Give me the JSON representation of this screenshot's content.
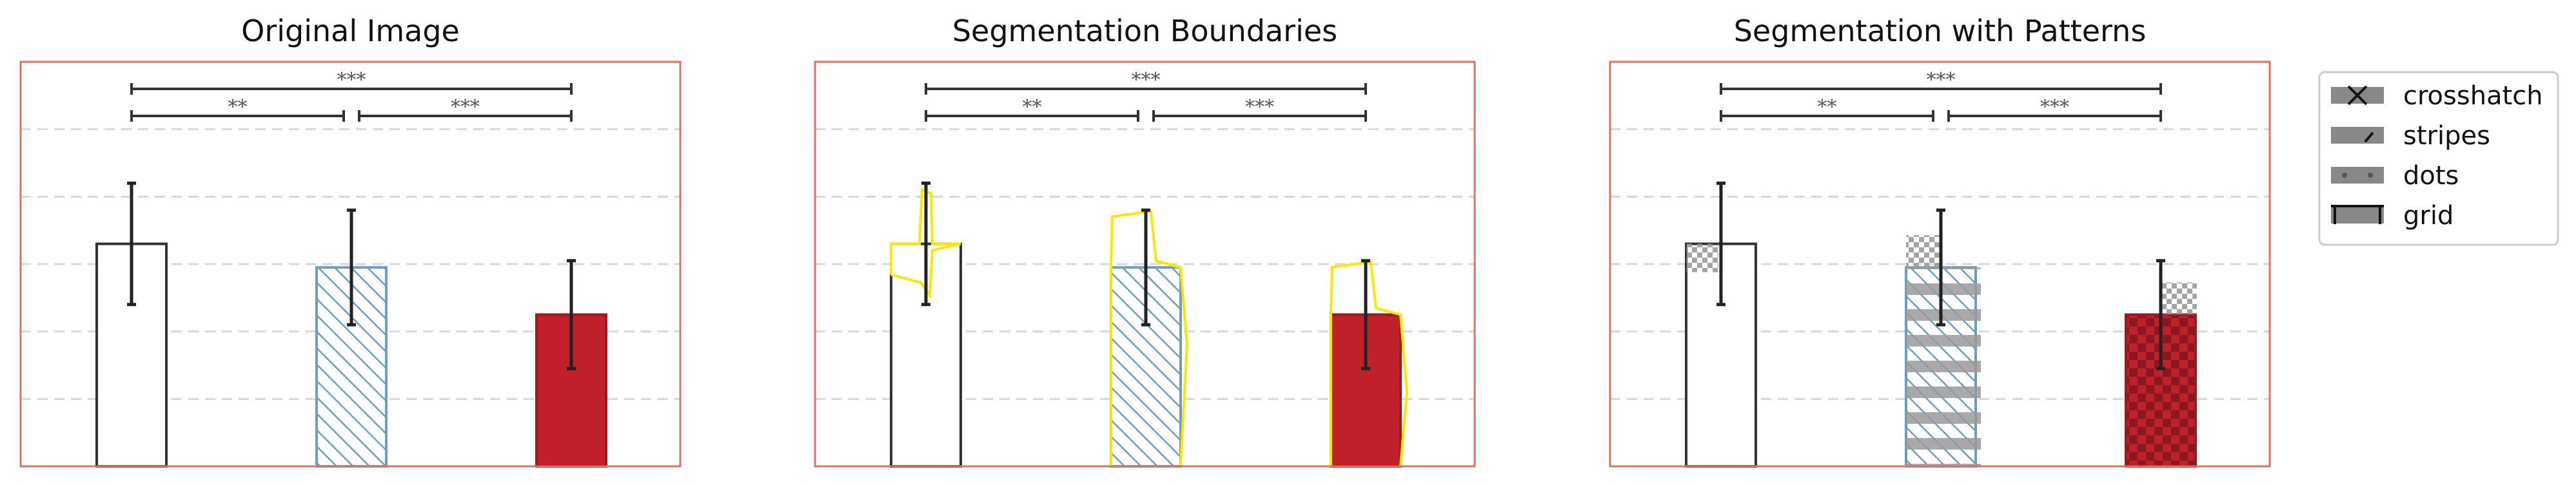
{
  "colors": {
    "frame": "#e07060",
    "grid": "#d8d8d8",
    "bar_white_edge": "#333333",
    "bar_blue_edge": "#6a9fc3",
    "bar_blue_hatch": "#6a9fc3",
    "bar_red_fill": "#c0202a",
    "bar_red_edge": "#9a1a20",
    "errorbar": "#222222",
    "sig_line": "#333333",
    "sig_text": "#555555",
    "segment": "#ffe600",
    "pattern_gray": "#9a9a9a"
  },
  "chart_data": [
    {
      "type": "bar",
      "title": "Original Image",
      "categories": [
        "",
        "",
        ""
      ],
      "values": [
        66,
        59,
        45
      ],
      "errors": [
        18,
        17,
        16
      ],
      "bar_styles": [
        "white",
        "blue-hatch",
        "red"
      ],
      "ylim": [
        0,
        120
      ],
      "grid": true,
      "significance": [
        {
          "from": 0,
          "to": 1,
          "label": "**",
          "level": 1
        },
        {
          "from": 1,
          "to": 2,
          "label": "***",
          "level": 1
        },
        {
          "from": 0,
          "to": 2,
          "label": "***",
          "level": 2
        }
      ]
    },
    {
      "type": "bar",
      "title": "Segmentation Boundaries",
      "categories": [
        "",
        "",
        ""
      ],
      "values": [
        66,
        59,
        45
      ],
      "errors": [
        18,
        17,
        16
      ],
      "bar_styles": [
        "white",
        "blue-hatch",
        "red"
      ],
      "ylim": [
        0,
        120
      ],
      "grid": true,
      "segmentation_overlay": true,
      "significance": [
        {
          "from": 0,
          "to": 1,
          "label": "**",
          "level": 1
        },
        {
          "from": 1,
          "to": 2,
          "label": "***",
          "level": 1
        },
        {
          "from": 0,
          "to": 2,
          "label": "***",
          "level": 2
        }
      ]
    },
    {
      "type": "bar",
      "title": "Segmentation with Patterns",
      "categories": [
        "",
        "",
        ""
      ],
      "values": [
        66,
        59,
        45
      ],
      "errors": [
        18,
        17,
        16
      ],
      "bar_styles": [
        "white",
        "blue-stripes",
        "red-checker"
      ],
      "ylim": [
        0,
        120
      ],
      "grid": true,
      "pattern_overlay": true,
      "significance": [
        {
          "from": 0,
          "to": 1,
          "label": "**",
          "level": 1
        },
        {
          "from": 1,
          "to": 2,
          "label": "***",
          "level": 1
        },
        {
          "from": 0,
          "to": 2,
          "label": "***",
          "level": 2
        }
      ]
    }
  ],
  "legend": {
    "placement": "right",
    "entries": [
      {
        "label": "crosshatch",
        "marker": "cross"
      },
      {
        "label": "stripes",
        "marker": "slash"
      },
      {
        "label": "dots",
        "marker": "dots"
      },
      {
        "label": "grid",
        "marker": "grid"
      }
    ]
  }
}
